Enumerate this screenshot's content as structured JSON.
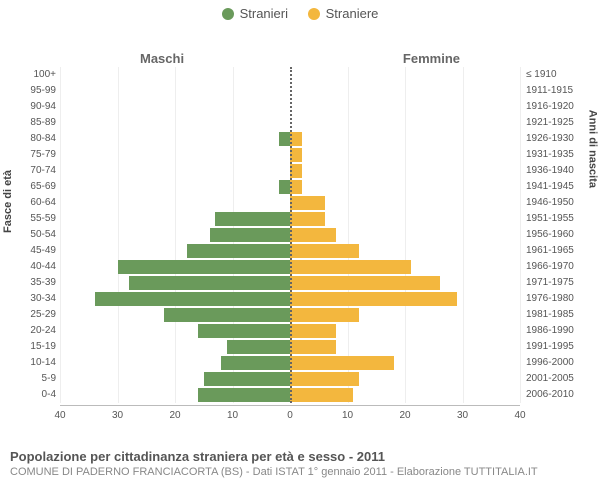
{
  "legend": {
    "male": {
      "label": "Stranieri",
      "color": "#6a9a5b"
    },
    "female": {
      "label": "Straniere",
      "color": "#f3b73e"
    }
  },
  "headings": {
    "male": "Maschi",
    "female": "Femmine",
    "left_axis": "Fasce di età",
    "right_axis": "Anni di nascita"
  },
  "chart": {
    "type": "population-pyramid",
    "x_max": 40,
    "x_ticks_left": [
      40,
      30,
      20,
      10,
      0
    ],
    "x_ticks_right": [
      0,
      10,
      20,
      30,
      40
    ],
    "male_color": "#6a9a5b",
    "female_color": "#f3b73e",
    "grid_color": "#eeeeee",
    "axis_color": "#bbbbbb",
    "center_line_color": "#666666",
    "label_fontsize": 10,
    "rows": [
      {
        "age": "100+",
        "birth": "≤ 1910",
        "m": 0,
        "f": 0
      },
      {
        "age": "95-99",
        "birth": "1911-1915",
        "m": 0,
        "f": 0
      },
      {
        "age": "90-94",
        "birth": "1916-1920",
        "m": 0,
        "f": 0
      },
      {
        "age": "85-89",
        "birth": "1921-1925",
        "m": 0,
        "f": 0
      },
      {
        "age": "80-84",
        "birth": "1926-1930",
        "m": 2,
        "f": 2
      },
      {
        "age": "75-79",
        "birth": "1931-1935",
        "m": 0,
        "f": 2
      },
      {
        "age": "70-74",
        "birth": "1936-1940",
        "m": 0,
        "f": 2
      },
      {
        "age": "65-69",
        "birth": "1941-1945",
        "m": 2,
        "f": 2
      },
      {
        "age": "60-64",
        "birth": "1946-1950",
        "m": 0,
        "f": 6
      },
      {
        "age": "55-59",
        "birth": "1951-1955",
        "m": 13,
        "f": 6
      },
      {
        "age": "50-54",
        "birth": "1956-1960",
        "m": 14,
        "f": 8
      },
      {
        "age": "45-49",
        "birth": "1961-1965",
        "m": 18,
        "f": 12
      },
      {
        "age": "40-44",
        "birth": "1966-1970",
        "m": 30,
        "f": 21
      },
      {
        "age": "35-39",
        "birth": "1971-1975",
        "m": 28,
        "f": 26
      },
      {
        "age": "30-34",
        "birth": "1976-1980",
        "m": 34,
        "f": 29
      },
      {
        "age": "25-29",
        "birth": "1981-1985",
        "m": 22,
        "f": 12
      },
      {
        "age": "20-24",
        "birth": "1986-1990",
        "m": 16,
        "f": 8
      },
      {
        "age": "15-19",
        "birth": "1991-1995",
        "m": 11,
        "f": 8
      },
      {
        "age": "10-14",
        "birth": "1996-2000",
        "m": 12,
        "f": 18
      },
      {
        "age": "5-9",
        "birth": "2001-2005",
        "m": 15,
        "f": 12
      },
      {
        "age": "0-4",
        "birth": "2006-2010",
        "m": 16,
        "f": 11
      }
    ]
  },
  "caption": {
    "title": "Popolazione per cittadinanza straniera per età e sesso - 2011",
    "subtitle": "COMUNE DI PADERNO FRANCIACORTA (BS) - Dati ISTAT 1° gennaio 2011 - Elaborazione TUTTITALIA.IT"
  }
}
